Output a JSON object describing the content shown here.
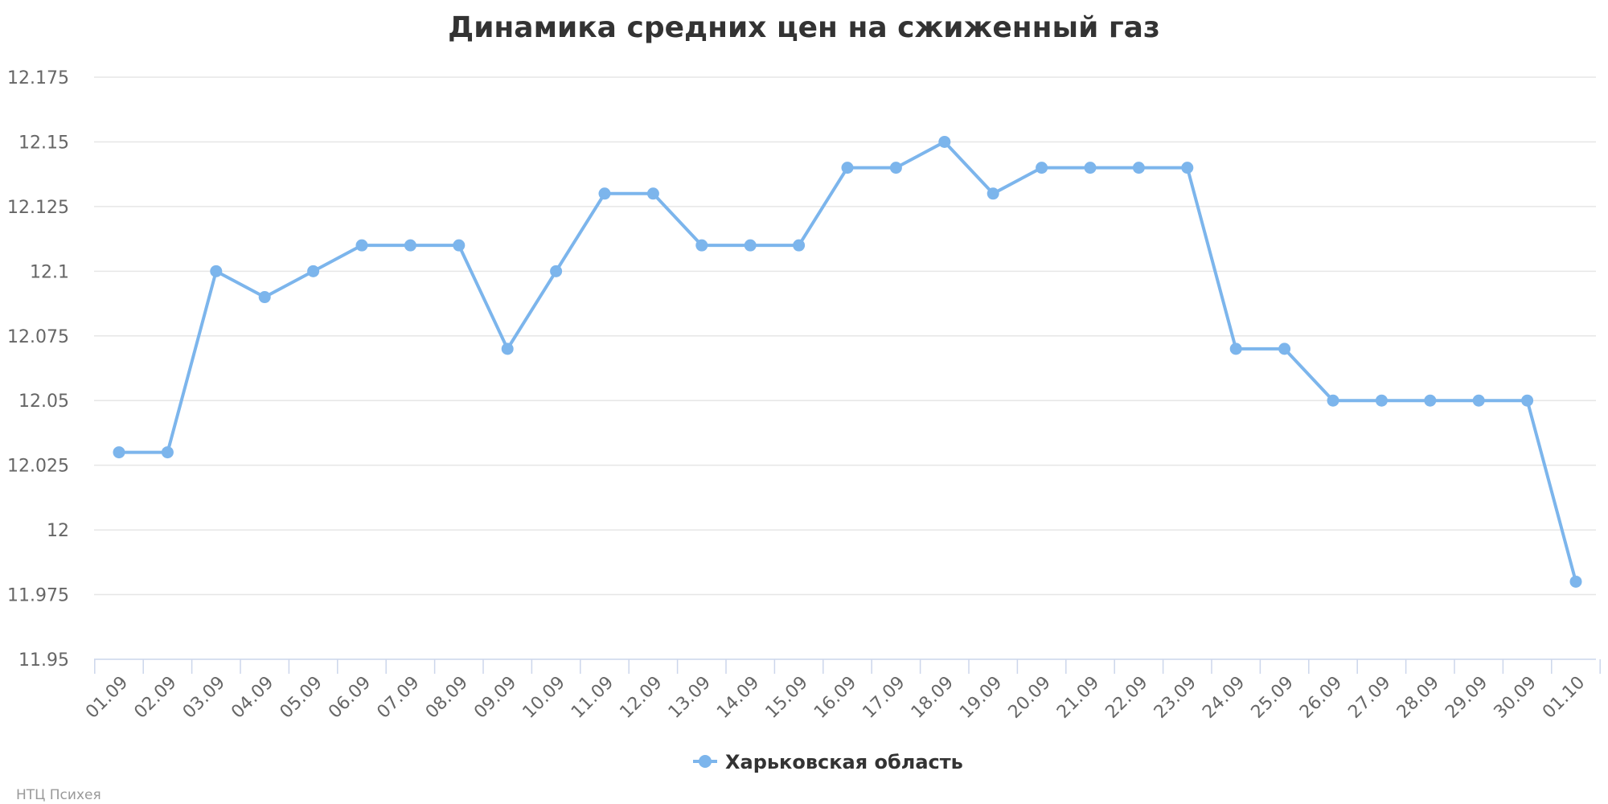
{
  "chart_data": {
    "type": "line",
    "title": "Динамика средних цен на сжиженный газ",
    "x": [
      "01.09",
      "02.09",
      "03.09",
      "04.09",
      "05.09",
      "06.09",
      "07.09",
      "08.09",
      "09.09",
      "10.09",
      "11.09",
      "12.09",
      "13.09",
      "14.09",
      "15.09",
      "16.09",
      "17.09",
      "18.09",
      "19.09",
      "20.09",
      "21.09",
      "22.09",
      "23.09",
      "24.09",
      "25.09",
      "26.09",
      "27.09",
      "28.09",
      "29.09",
      "30.09",
      "01.10"
    ],
    "series": [
      {
        "name": "Харьковская область",
        "color": "#7cb5ec",
        "values": [
          12.03,
          12.03,
          12.1,
          12.09,
          12.1,
          12.11,
          12.11,
          12.11,
          12.07,
          12.1,
          12.13,
          12.13,
          12.11,
          12.11,
          12.11,
          12.14,
          12.14,
          12.15,
          12.13,
          12.14,
          12.14,
          12.14,
          12.14,
          12.07,
          12.07,
          12.05,
          12.05,
          12.05,
          12.05,
          12.05,
          11.98
        ]
      }
    ],
    "ylim": [
      11.95,
      12.175
    ],
    "y_ticks": [
      "11.95",
      "11.975",
      "12",
      "12.025",
      "12.05",
      "12.075",
      "12.1",
      "12.125",
      "12.15",
      "12.175"
    ],
    "grid": true,
    "legend_position": "bottom-center",
    "credits": "НТЦ Психея"
  }
}
